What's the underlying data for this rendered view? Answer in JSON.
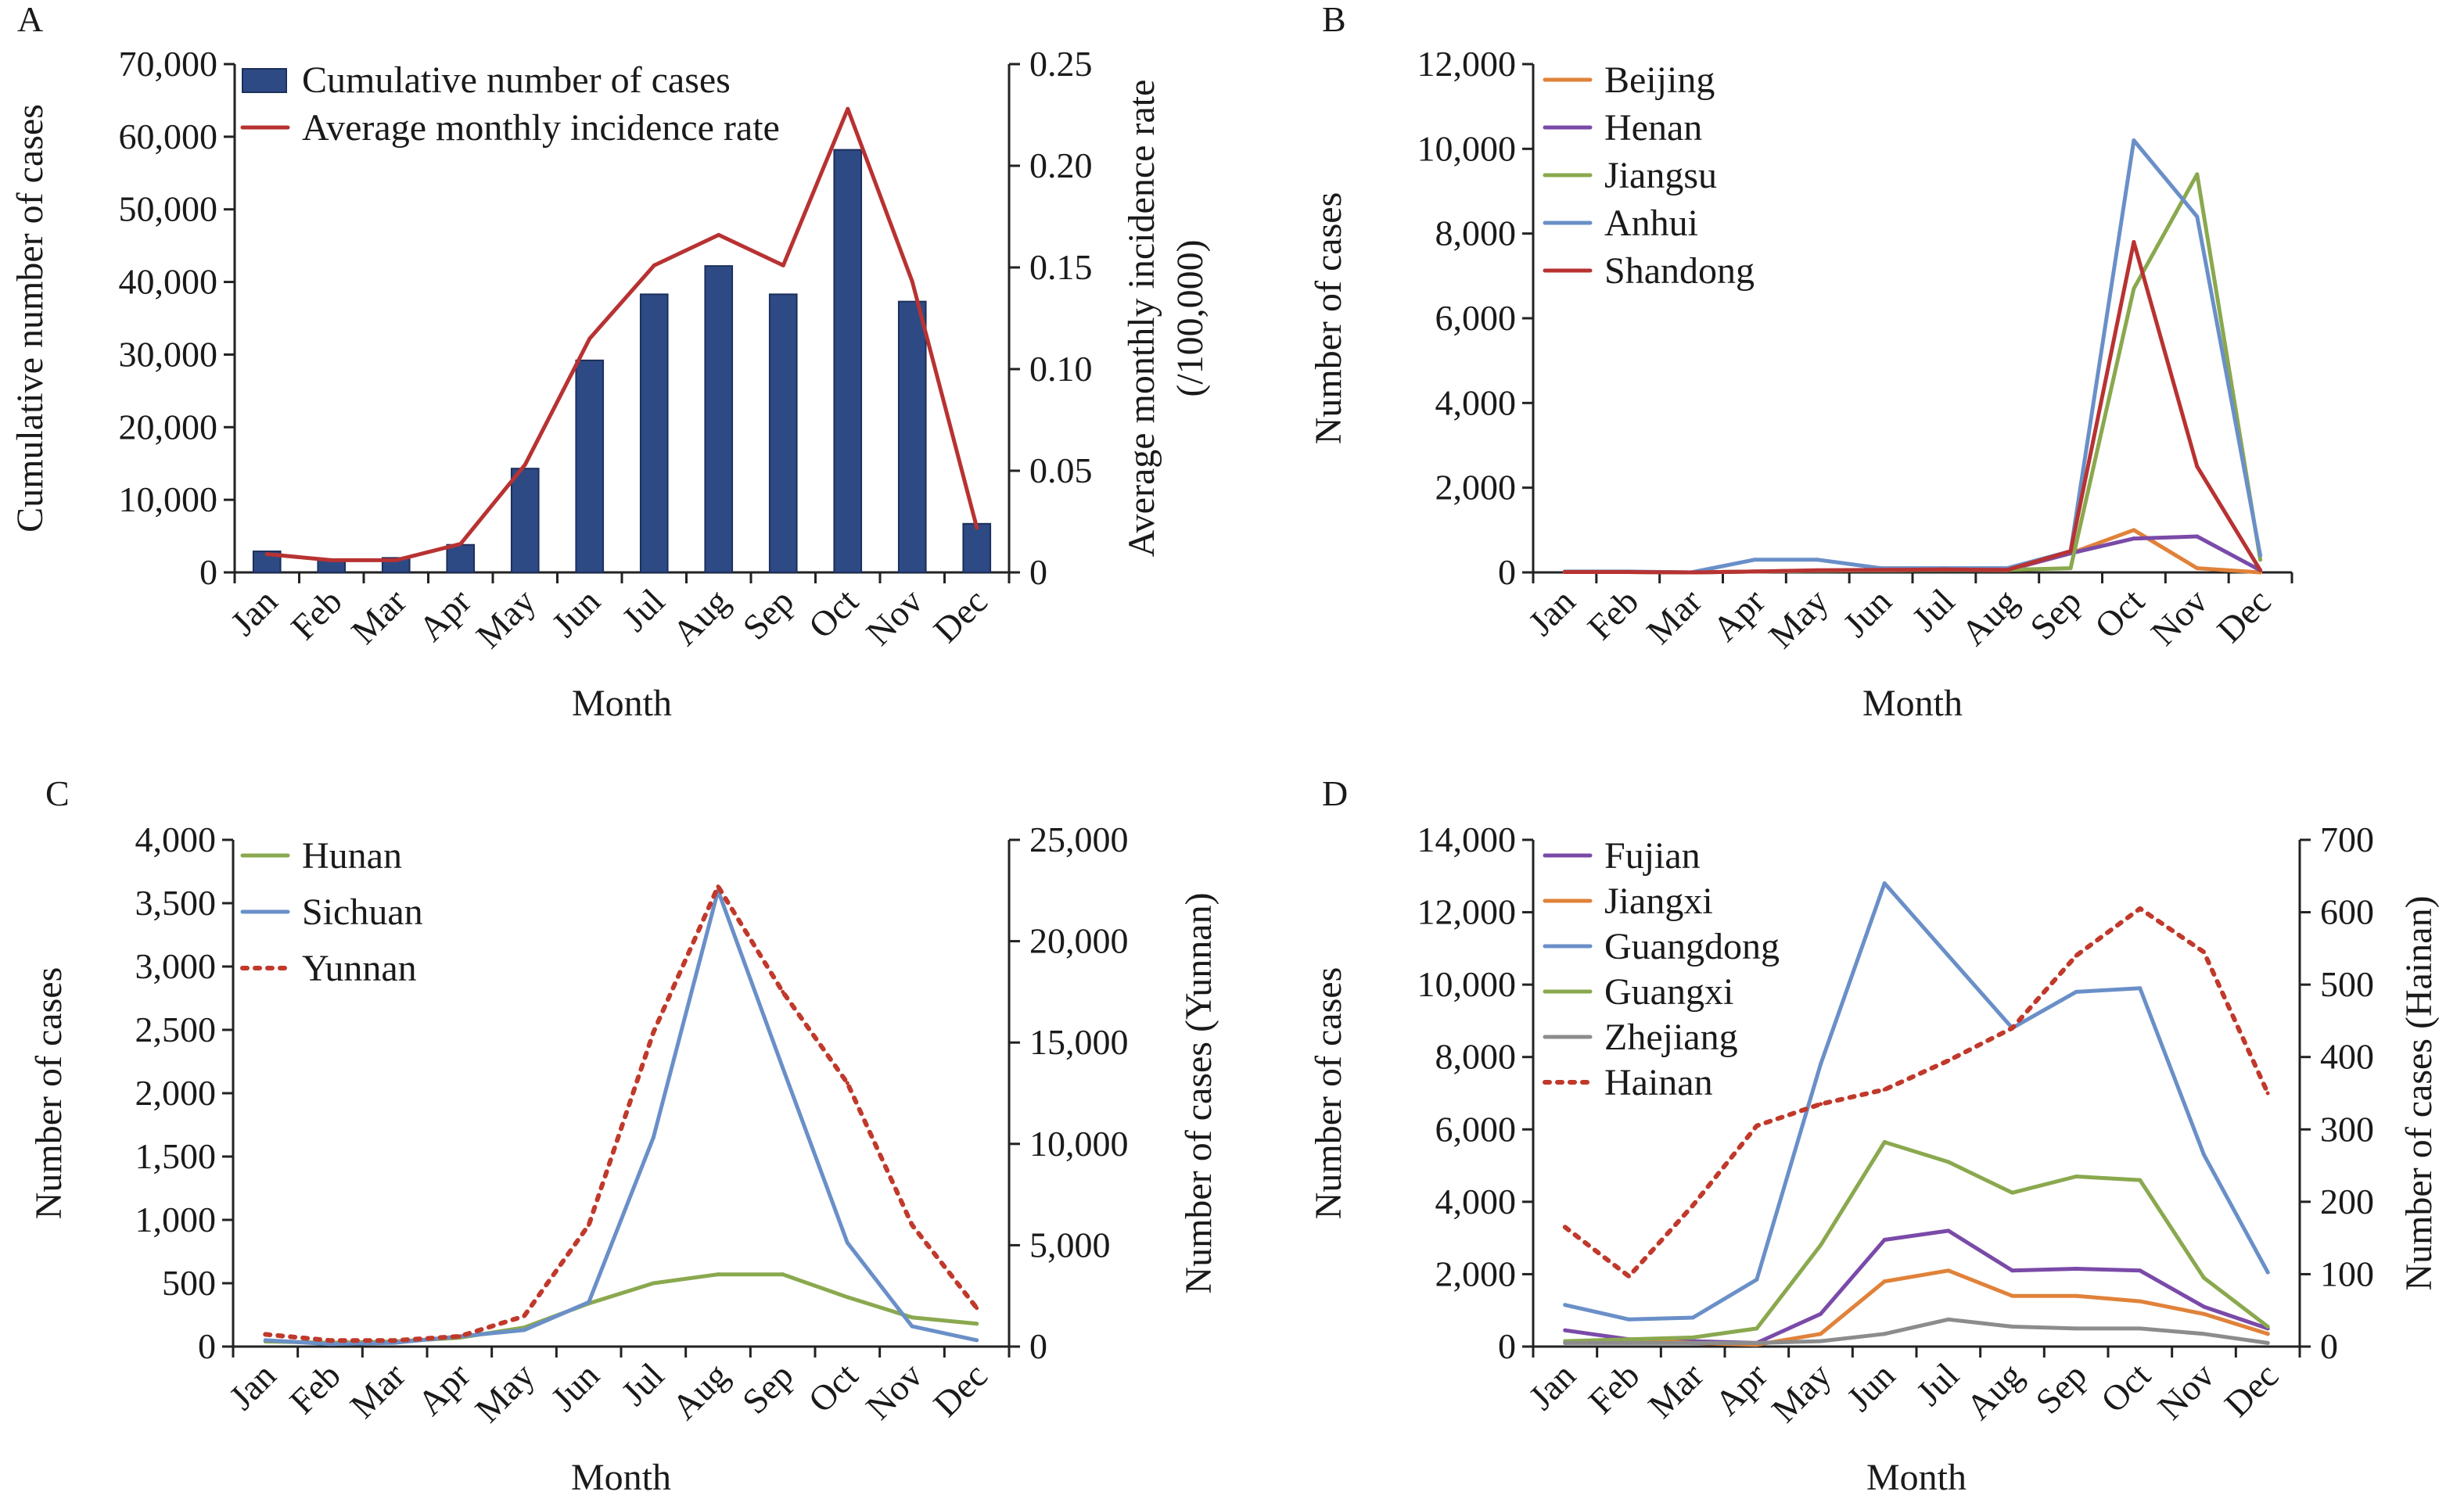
{
  "chart_data": [
    {
      "panel": "A",
      "type": "bar",
      "categories": [
        "Jan",
        "Feb",
        "Mar",
        "Apr",
        "May",
        "Jun",
        "Jul",
        "Aug",
        "Sep",
        "Oct",
        "Nov",
        "Dec"
      ],
      "xlabel": "Month",
      "ylabel": "Cumulative number of cases",
      "y2label": "Average monthly incidence rate",
      "y2label2": "(/100,000)",
      "ylim": [
        0,
        70000
      ],
      "y2lim": [
        0,
        0.25
      ],
      "yticks": [
        "0",
        "10,000",
        "20,000",
        "30,000",
        "40,000",
        "50,000",
        "60,000",
        "70,000"
      ],
      "y2ticks": [
        "0",
        "0.05",
        "0.10",
        "0.15",
        "0.20",
        "0.25"
      ],
      "legend_position": "top-left",
      "series": [
        {
          "name": "Cumulative number of cases",
          "kind": "bar",
          "axis": "left",
          "color": "#2e4a85",
          "values": [
            2900,
            1800,
            2000,
            3800,
            14300,
            29200,
            38300,
            42200,
            38300,
            58200,
            37300,
            6700
          ]
        },
        {
          "name": "Average monthly incidence rate",
          "kind": "line",
          "axis": "right",
          "color": "#b83232",
          "values": [
            0.009,
            0.006,
            0.006,
            0.014,
            0.053,
            0.115,
            0.151,
            0.166,
            0.151,
            0.228,
            0.143,
            0.022
          ]
        }
      ]
    },
    {
      "panel": "B",
      "type": "line",
      "categories": [
        "Jan",
        "Feb",
        "Mar",
        "Apr",
        "May",
        "Jun",
        "Jul",
        "Aug",
        "Sep",
        "Oct",
        "Nov",
        "Dec"
      ],
      "xlabel": "Month",
      "ylabel": "Number of cases",
      "ylim": [
        0,
        12000
      ],
      "yticks": [
        "0",
        "2,000",
        "4,000",
        "6,000",
        "8,000",
        "10,000",
        "12,000"
      ],
      "legend_position": "top-left",
      "series": [
        {
          "name": "Beijing",
          "color": "#e0823a",
          "values": [
            10,
            10,
            0,
            20,
            40,
            50,
            60,
            50,
            450,
            1000,
            100,
            0
          ]
        },
        {
          "name": "Henan",
          "color": "#7a4aa8",
          "values": [
            10,
            10,
            0,
            20,
            40,
            50,
            60,
            60,
            450,
            800,
            850,
            50
          ]
        },
        {
          "name": "Jiangsu",
          "color": "#8aa84e",
          "values": [
            10,
            10,
            0,
            20,
            40,
            50,
            60,
            60,
            100,
            6700,
            9400,
            300
          ]
        },
        {
          "name": "Anhui",
          "color": "#6a8fc8",
          "values": [
            20,
            20,
            0,
            300,
            300,
            100,
            100,
            100,
            500,
            10200,
            8400,
            400
          ]
        },
        {
          "name": "Shandong",
          "color": "#b83232",
          "values": [
            10,
            10,
            0,
            20,
            50,
            60,
            70,
            60,
            500,
            7800,
            2500,
            50
          ]
        }
      ]
    },
    {
      "panel": "C",
      "type": "line",
      "categories": [
        "Jan",
        "Feb",
        "Mar",
        "Apr",
        "May",
        "Jun",
        "Jul",
        "Aug",
        "Sep",
        "Oct",
        "Nov",
        "Dec"
      ],
      "xlabel": "Month",
      "ylabel": "Number of cases",
      "y2label": "Number of cases (Yunnan)",
      "ylim": [
        0,
        4000
      ],
      "y2lim": [
        0,
        25000
      ],
      "yticks": [
        "0",
        "500",
        "1,000",
        "1,500",
        "2,000",
        "2,500",
        "3,000",
        "3,500",
        "4,000"
      ],
      "y2ticks": [
        "0",
        "5,000",
        "10,000",
        "15,000",
        "20,000",
        "25,000"
      ],
      "legend_position": "top-left",
      "series": [
        {
          "name": "Hunan",
          "axis": "left",
          "color": "#8aa84e",
          "values": [
            40,
            30,
            40,
            70,
            150,
            340,
            500,
            570,
            570,
            390,
            230,
            180
          ]
        },
        {
          "name": "Sichuan",
          "axis": "left",
          "color": "#6a8fc8",
          "values": [
            50,
            20,
            30,
            80,
            130,
            350,
            1650,
            3600,
            2200,
            820,
            160,
            50
          ]
        },
        {
          "name": "Yunnan",
          "axis": "right",
          "dashed": true,
          "color": "#c0392b",
          "values": [
            600,
            300,
            300,
            500,
            1500,
            6000,
            15500,
            22700,
            17500,
            13000,
            6000,
            1900
          ]
        }
      ]
    },
    {
      "panel": "D",
      "type": "line",
      "categories": [
        "Jan",
        "Feb",
        "Mar",
        "Apr",
        "May",
        "Jun",
        "Jul",
        "Aug",
        "Sep",
        "Oct",
        "Nov",
        "Dec"
      ],
      "xlabel": "Month",
      "ylabel": "Number of cases",
      "y2label": "Number of cases (Hainan)",
      "ylim": [
        0,
        14000
      ],
      "y2lim": [
        0,
        700
      ],
      "yticks": [
        "0",
        "2,000",
        "4,000",
        "6,000",
        "8,000",
        "10,000",
        "12,000",
        "14,000"
      ],
      "y2ticks": [
        "0",
        "100",
        "200",
        "300",
        "400",
        "500",
        "600",
        "700"
      ],
      "legend_position": "top-left",
      "series": [
        {
          "name": "Fujian",
          "axis": "left",
          "color": "#7a4aa8",
          "values": [
            450,
            200,
            150,
            100,
            900,
            2950,
            3200,
            2100,
            2150,
            2100,
            1100,
            500
          ]
        },
        {
          "name": "Jiangxi",
          "axis": "left",
          "color": "#e0823a",
          "values": [
            100,
            200,
            100,
            50,
            350,
            1800,
            2100,
            1400,
            1400,
            1250,
            900,
            350
          ]
        },
        {
          "name": "Guangdong",
          "axis": "left",
          "color": "#6a8fc8",
          "values": [
            1150,
            750,
            800,
            1850,
            7800,
            12800,
            10800,
            8800,
            9800,
            9900,
            5300,
            2050
          ]
        },
        {
          "name": "Guangxi",
          "axis": "left",
          "color": "#8aa84e",
          "values": [
            150,
            200,
            250,
            500,
            2800,
            5650,
            5100,
            4250,
            4700,
            4600,
            1900,
            550
          ]
        },
        {
          "name": "Zhejiang",
          "axis": "left",
          "color": "#8c8c8c",
          "values": [
            100,
            100,
            100,
            100,
            150,
            350,
            750,
            550,
            500,
            500,
            350,
            100
          ]
        },
        {
          "name": "Hainan",
          "axis": "right",
          "dashed": true,
          "color": "#c0392b",
          "values": [
            165,
            97,
            195,
            305,
            335,
            355,
            395,
            440,
            540,
            605,
            545,
            350
          ]
        }
      ]
    }
  ]
}
